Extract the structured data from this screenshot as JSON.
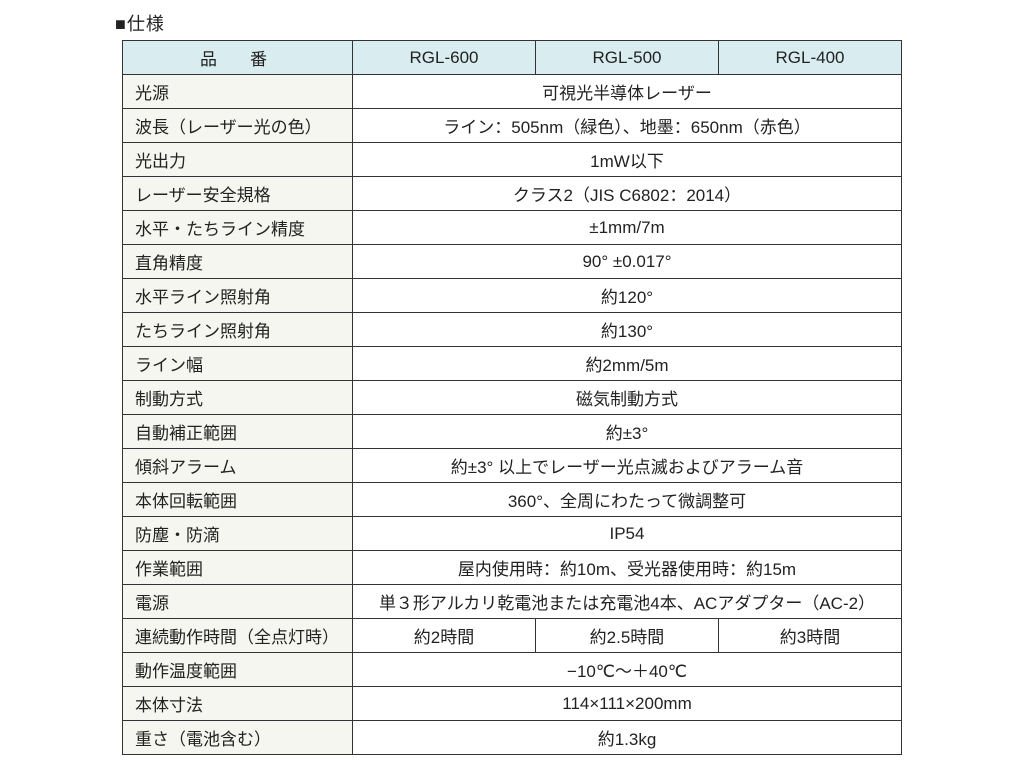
{
  "title": "■仕様",
  "colors": {
    "header_bg": "#d9ecef",
    "label_bg": "#f5f6ef",
    "border": "#333333",
    "text": "#222222"
  },
  "header": {
    "label": "品　番",
    "models": [
      "RGL-600",
      "RGL-500",
      "RGL-400"
    ]
  },
  "rows": [
    {
      "label": "光源",
      "span": 3,
      "values": [
        "可視光半導体レーザー"
      ]
    },
    {
      "label": "波長（レーザー光の色）",
      "span": 3,
      "values": [
        "ライン：505nm（緑色）、地墨：650nm（赤色）"
      ]
    },
    {
      "label": "光出力",
      "span": 3,
      "values": [
        "1mW以下"
      ]
    },
    {
      "label": "レーザー安全規格",
      "span": 3,
      "values": [
        "クラス2（JIS C6802：2014）"
      ]
    },
    {
      "label": "水平・たちライン精度",
      "span": 3,
      "values": [
        "±1mm/7m"
      ]
    },
    {
      "label": "直角精度",
      "span": 3,
      "values": [
        "90° ±0.017°"
      ]
    },
    {
      "label": "水平ライン照射角",
      "span": 3,
      "values": [
        "約120°"
      ]
    },
    {
      "label": "たちライン照射角",
      "span": 3,
      "values": [
        "約130°"
      ]
    },
    {
      "label": "ライン幅",
      "span": 3,
      "values": [
        "約2mm/5m"
      ]
    },
    {
      "label": "制動方式",
      "span": 3,
      "values": [
        "磁気制動方式"
      ]
    },
    {
      "label": "自動補正範囲",
      "span": 3,
      "values": [
        "約±3°"
      ]
    },
    {
      "label": "傾斜アラーム",
      "span": 3,
      "values": [
        "約±3° 以上でレーザー光点滅およびアラーム音"
      ]
    },
    {
      "label": "本体回転範囲",
      "span": 3,
      "values": [
        "360°、全周にわたって微調整可"
      ]
    },
    {
      "label": "防塵・防滴",
      "span": 3,
      "values": [
        "IP54"
      ]
    },
    {
      "label": "作業範囲",
      "span": 3,
      "values": [
        "屋内使用時：約10m、受光器使用時：約15m"
      ]
    },
    {
      "label": "電源",
      "span": 3,
      "values": [
        "単３形アルカリ乾電池または充電池4本、ACアダプター（AC-2）"
      ]
    },
    {
      "label": "連続動作時間（全点灯時）",
      "span": 1,
      "values": [
        "約2時間",
        "約2.5時間",
        "約3時間"
      ]
    },
    {
      "label": "動作温度範囲",
      "span": 3,
      "values": [
        "−10℃〜＋40℃"
      ]
    },
    {
      "label": "本体寸法",
      "span": 3,
      "values": [
        "114×111×200mm"
      ]
    },
    {
      "label": "重さ（電池含む）",
      "span": 3,
      "values": [
        "約1.3kg"
      ]
    }
  ]
}
